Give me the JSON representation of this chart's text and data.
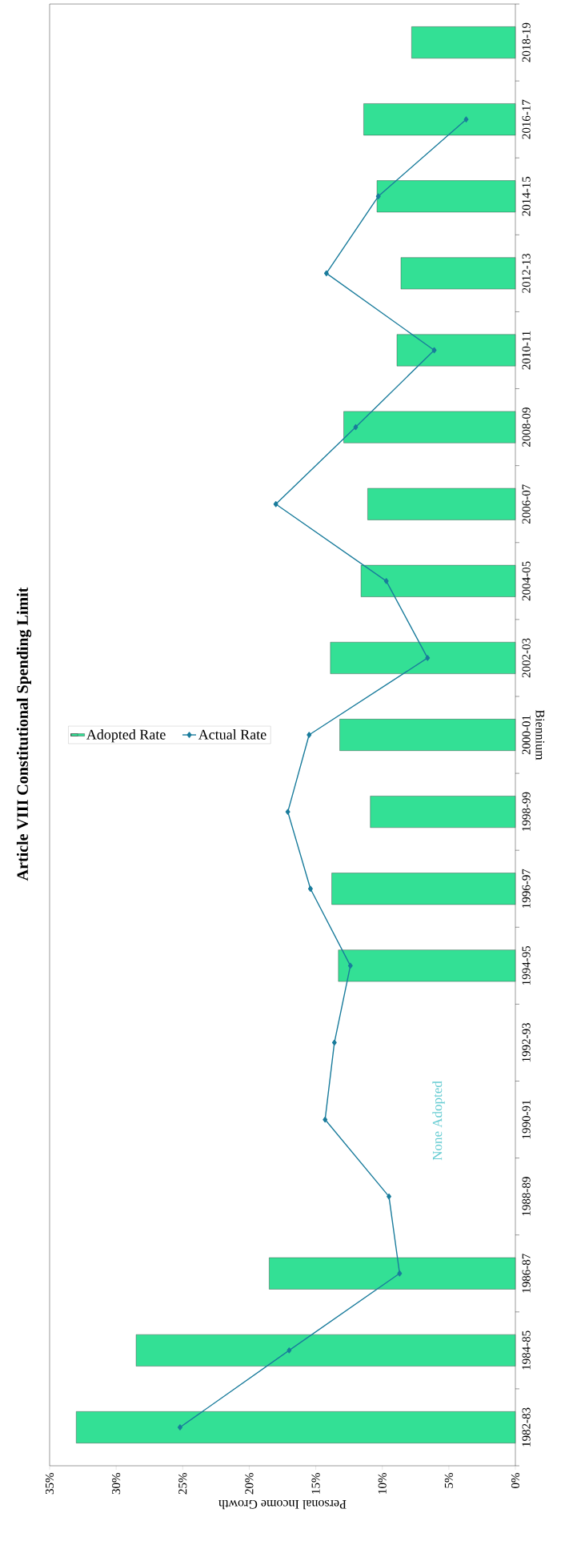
{
  "chart_data": {
    "type": "bar",
    "orientation": "horizontal",
    "title": "Article VIII Constitutional Spending Limit",
    "xlabel": "Personal Income Growth",
    "ylabel": "Biennium",
    "categories": [
      "2018-19",
      "2016-17",
      "2014-15",
      "2012-13",
      "2010-11",
      "2008-09",
      "2006-07",
      "2004-05",
      "2002-03",
      "2000-01",
      "1998-99",
      "1996-97",
      "1994-95",
      "1992-93",
      "1990-91",
      "1988-89",
      "1986-87",
      "1984-85",
      "1982-83"
    ],
    "series": [
      {
        "name": "Adopted Rate",
        "color": "#33e095",
        "values": [
          7.8,
          11.4,
          10.4,
          8.6,
          8.9,
          12.9,
          11.1,
          11.6,
          13.9,
          13.2,
          10.9,
          13.8,
          13.3,
          null,
          null,
          null,
          18.5,
          28.5,
          33.0
        ]
      },
      {
        "name": "Actual Rate",
        "type": "line",
        "color": "#1a7c9c",
        "marker": "diamond",
        "values": [
          null,
          3.7,
          10.3,
          14.2,
          6.1,
          12.0,
          18.0,
          9.7,
          6.6,
          15.5,
          17.1,
          15.4,
          12.4,
          13.6,
          14.3,
          9.5,
          8.7,
          17.0,
          25.2
        ]
      }
    ],
    "xlim": [
      35,
      0
    ],
    "xticks": [
      {
        "value": 35,
        "label": "35%"
      },
      {
        "value": 30,
        "label": "30%"
      },
      {
        "value": 25,
        "label": "25%"
      },
      {
        "value": 20,
        "label": "20%"
      },
      {
        "value": 15,
        "label": "15%"
      },
      {
        "value": 10,
        "label": "10%"
      },
      {
        "value": 5,
        "label": "5%"
      },
      {
        "value": 0,
        "label": "0%"
      }
    ],
    "annotations": [
      "None Adopted"
    ],
    "legend": "left"
  }
}
